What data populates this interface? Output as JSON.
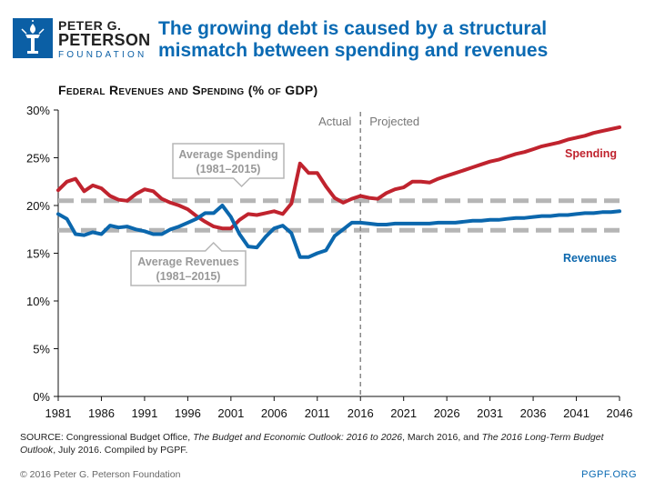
{
  "header": {
    "logo_line1": "PETER G.",
    "logo_line2": "PETERSON",
    "logo_line3": "FOUNDATION",
    "logo_icon": "torch-icon",
    "headline": "The growing debt is caused by a structural mismatch between spending and revenues"
  },
  "chart_data": {
    "type": "line",
    "title": "Federal Revenues and Spending (% of GDP)",
    "xlabel": "",
    "ylabel": "",
    "xlim": [
      1981,
      2046
    ],
    "ylim": [
      0,
      30
    ],
    "x_ticks": [
      1981,
      1986,
      1991,
      1996,
      2001,
      2006,
      2011,
      2016,
      2021,
      2026,
      2031,
      2036,
      2041,
      2046
    ],
    "y_ticks": [
      {
        "value": 0,
        "label": "0%"
      },
      {
        "value": 5,
        "label": "5%"
      },
      {
        "value": 10,
        "label": "10%"
      },
      {
        "value": 15,
        "label": "15%"
      },
      {
        "value": 20,
        "label": "20%"
      },
      {
        "value": 25,
        "label": "25%"
      },
      {
        "value": 30,
        "label": "30%"
      }
    ],
    "x": [
      1981,
      1982,
      1983,
      1984,
      1985,
      1986,
      1987,
      1988,
      1989,
      1990,
      1991,
      1992,
      1993,
      1994,
      1995,
      1996,
      1997,
      1998,
      1999,
      2000,
      2001,
      2002,
      2003,
      2004,
      2005,
      2006,
      2007,
      2008,
      2009,
      2010,
      2011,
      2012,
      2013,
      2014,
      2015,
      2016,
      2017,
      2018,
      2019,
      2020,
      2021,
      2022,
      2023,
      2024,
      2025,
      2026,
      2027,
      2028,
      2029,
      2030,
      2031,
      2032,
      2033,
      2034,
      2035,
      2036,
      2037,
      2038,
      2039,
      2040,
      2041,
      2042,
      2043,
      2044,
      2045,
      2046
    ],
    "series": [
      {
        "name": "Spending",
        "color": "#c0232e",
        "values": [
          21.6,
          22.5,
          22.8,
          21.5,
          22.1,
          21.8,
          21.0,
          20.6,
          20.5,
          21.2,
          21.7,
          21.5,
          20.7,
          20.3,
          20.0,
          19.6,
          18.9,
          18.3,
          17.8,
          17.6,
          17.6,
          18.5,
          19.1,
          19.0,
          19.2,
          19.4,
          19.1,
          20.2,
          24.4,
          23.4,
          23.4,
          22.0,
          20.8,
          20.3,
          20.7,
          21.0,
          20.8,
          20.7,
          21.3,
          21.7,
          21.9,
          22.5,
          22.5,
          22.4,
          22.8,
          23.1,
          23.4,
          23.7,
          24.0,
          24.3,
          24.6,
          24.8,
          25.1,
          25.4,
          25.6,
          25.9,
          26.2,
          26.4,
          26.6,
          26.9,
          27.1,
          27.3,
          27.6,
          27.8,
          28.0,
          28.2
        ]
      },
      {
        "name": "Revenues",
        "color": "#0b67ad",
        "values": [
          19.1,
          18.6,
          17.0,
          16.9,
          17.2,
          17.0,
          17.9,
          17.7,
          17.8,
          17.5,
          17.3,
          17.0,
          17.0,
          17.5,
          17.8,
          18.2,
          18.6,
          19.2,
          19.2,
          20.0,
          18.8,
          17.0,
          15.7,
          15.6,
          16.7,
          17.6,
          17.9,
          17.1,
          14.6,
          14.6,
          15.0,
          15.3,
          16.8,
          17.5,
          18.2,
          18.2,
          18.1,
          18.0,
          18.0,
          18.1,
          18.1,
          18.1,
          18.1,
          18.1,
          18.2,
          18.2,
          18.2,
          18.3,
          18.4,
          18.4,
          18.5,
          18.5,
          18.6,
          18.7,
          18.7,
          18.8,
          18.9,
          18.9,
          19.0,
          19.0,
          19.1,
          19.2,
          19.2,
          19.3,
          19.3,
          19.4
        ]
      }
    ],
    "reference_lines": [
      {
        "name": "Average Spending",
        "value": 20.5,
        "label_line1": "Average Spending",
        "label_line2": "(1981–2015)"
      },
      {
        "name": "Average Revenues",
        "value": 17.4,
        "label_line1": "Average Revenues",
        "label_line2": "(1981–2015)"
      }
    ],
    "divider": {
      "x": 2016,
      "left_label": "Actual",
      "right_label": "Projected"
    },
    "series_labels": {
      "spending": "Spending",
      "revenues": "Revenues"
    }
  },
  "footer": {
    "source_prefix": "SOURCE: Congressional Budget Office, ",
    "source_italic1": "The Budget and Economic Outlook: 2016 to 2026",
    "source_mid": ", March 2016, and ",
    "source_italic2": "The 2016 Long-Term Budget Outlook",
    "source_suffix": ", July 2016. Compiled by PGPF.",
    "copyright": "© 2016 Peter G. Peterson Foundation",
    "site": "PGPF.ORG"
  },
  "colors": {
    "accent": "#0a6ab3",
    "spending": "#c0232e",
    "revenues": "#0b67ad",
    "reference": "#b5b5b5"
  }
}
